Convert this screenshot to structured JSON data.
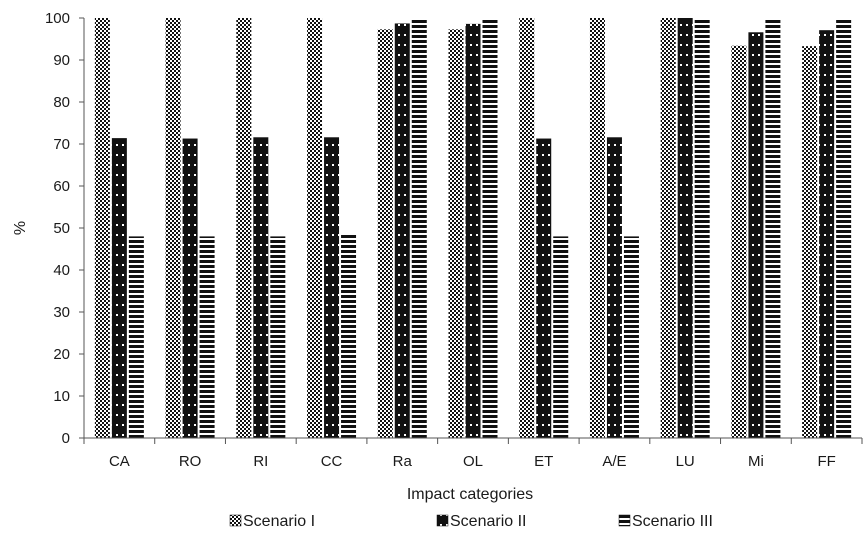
{
  "chart_data": {
    "type": "bar",
    "title": "",
    "xlabel": "Impact categories",
    "ylabel": "%",
    "ylim": [
      0,
      100
    ],
    "yticks": [
      0,
      10,
      20,
      30,
      40,
      50,
      60,
      70,
      80,
      90,
      100
    ],
    "grid": false,
    "legend_position": "bottom",
    "categories": [
      "CA",
      "RO",
      "RI",
      "CC",
      "Ra",
      "OL",
      "ET",
      "A/E",
      "LU",
      "Mi",
      "FF"
    ],
    "series": [
      {
        "name": "Scenario I",
        "pattern": "checker",
        "color": "#111111",
        "values": [
          100,
          100,
          100,
          100,
          97.3,
          97.3,
          100,
          100,
          100,
          93.4,
          93.3
        ]
      },
      {
        "name": "Scenario II",
        "pattern": "dotted-black",
        "color": "#111111",
        "values": [
          71.4,
          71.3,
          71.6,
          71.6,
          98.7,
          98.6,
          71.3,
          71.6,
          100,
          96.6,
          97.1
        ]
      },
      {
        "name": "Scenario III",
        "pattern": "horizontal-lines",
        "color": "#111111",
        "values": [
          48.0,
          48.0,
          48.0,
          48.8,
          100,
          100,
          48.0,
          48.0,
          100,
          100,
          100
        ]
      }
    ]
  }
}
